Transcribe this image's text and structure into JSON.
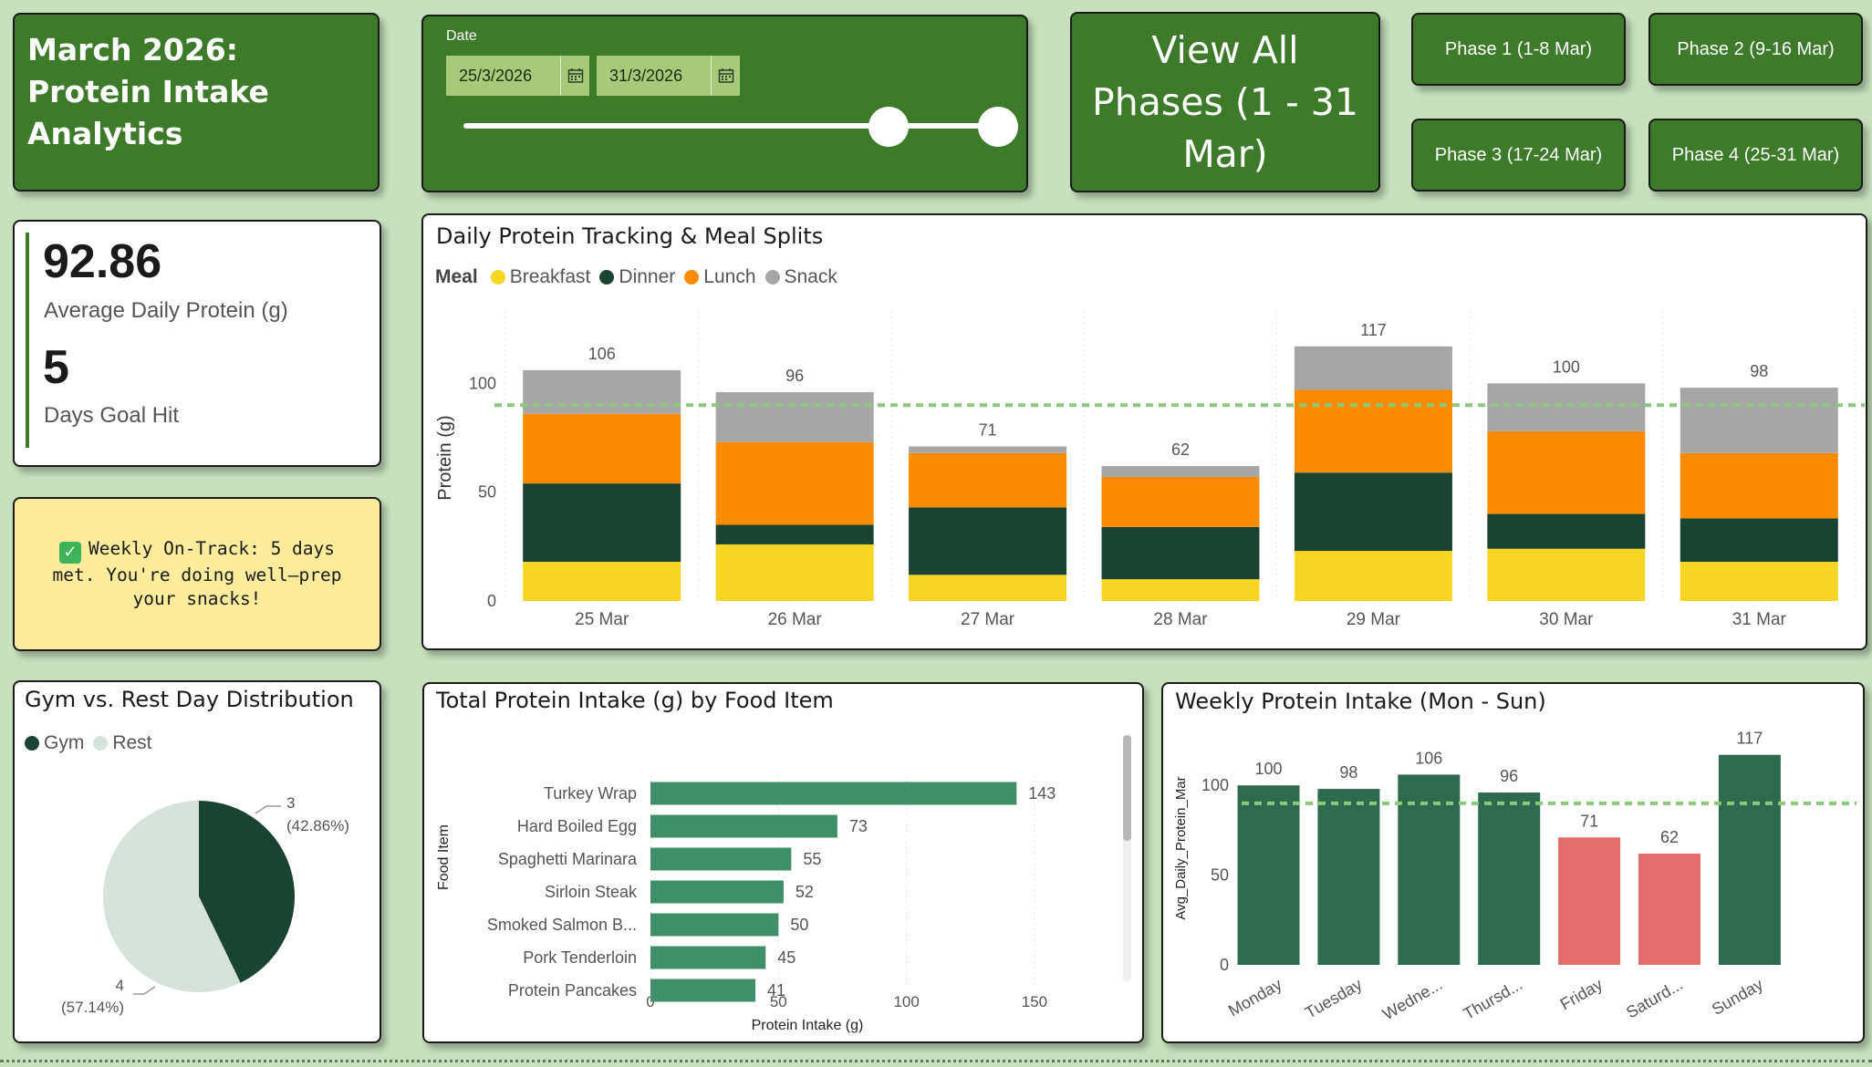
{
  "header": {
    "title": "March 2026: Protein Intake Analytics"
  },
  "date_filter": {
    "label": "Date",
    "start": "25/3/2026",
    "end": "31/3/2026",
    "range_fraction": [
      0.795,
      1.0
    ]
  },
  "buttons": {
    "view_all": "View All Phases (1 - 31 Mar)",
    "phase1": "Phase 1 (1-8 Mar)",
    "phase2": "Phase 2 (9-16 Mar)",
    "phase3": "Phase 3 (17-24 Mar)",
    "phase4": "Phase 4 (25-31 Mar)"
  },
  "kpis": {
    "avg_value": "92.86",
    "avg_label": "Average Daily Protein (g)",
    "goal_value": "5",
    "goal_label": "Days Goal Hit"
  },
  "note": {
    "icon": "check-icon",
    "text": "Weekly On-Track: 5 days met. You're doing well—prep your snacks!"
  },
  "colors": {
    "card_green": "#3d7a2a",
    "breakfast": "#f6d523",
    "dinner": "#1b4332",
    "lunch": "#fb8c00",
    "snack": "#a6a6a6",
    "food_bar": "#3f8f6a",
    "week_met": "#2d6a4f",
    "week_below": "#e36c6c",
    "gym": "#1b4332",
    "rest": "#d6e2dc",
    "goal_line": "#8bc97a"
  },
  "chart_data": [
    {
      "id": "daily",
      "type": "bar",
      "stacked": true,
      "title": "Daily Protein Tracking & Meal Splits",
      "legend_title": "Meal",
      "legend_position": "top-left",
      "categories": [
        "25 Mar",
        "26 Mar",
        "27 Mar",
        "28 Mar",
        "29 Mar",
        "30 Mar",
        "31 Mar"
      ],
      "series": [
        {
          "name": "Breakfast",
          "values": [
            18,
            26,
            12,
            10,
            23,
            24,
            18
          ]
        },
        {
          "name": "Dinner",
          "values": [
            36,
            9,
            31,
            24,
            36,
            16,
            20
          ]
        },
        {
          "name": "Lunch",
          "values": [
            32,
            38,
            25,
            23,
            38,
            38,
            30
          ]
        },
        {
          "name": "Snack",
          "values": [
            20,
            23,
            3,
            5,
            20,
            22,
            30
          ]
        }
      ],
      "totals": [
        106,
        96,
        71,
        62,
        117,
        100,
        98
      ],
      "goal_line": 90,
      "xlabel": "",
      "ylabel": "Protein (g)",
      "yticks": [
        0,
        50,
        100
      ],
      "ylim": [
        0,
        132
      ],
      "grid": true
    },
    {
      "id": "food",
      "type": "bar",
      "orientation": "horizontal",
      "title": "Total Protein Intake (g) by Food Item",
      "categories": [
        "Turkey Wrap",
        "Hard Boiled Egg",
        "Spaghetti Marinara",
        "Sirloin Steak",
        "Smoked Salmon B...",
        "Pork Tenderloin",
        "Protein Pancakes"
      ],
      "values": [
        143,
        73,
        55,
        52,
        50,
        45,
        41
      ],
      "xlabel": "Protein Intake (g)",
      "ylabel": "Food Item",
      "xticks": [
        0,
        50,
        100,
        150
      ],
      "xlim": [
        0,
        160
      ],
      "grid": true
    },
    {
      "id": "weekly",
      "type": "bar",
      "title": "Weekly Protein Intake (Mon - Sun)",
      "categories": [
        "Monday",
        "Tuesday",
        "Wedne...",
        "Thursd...",
        "Friday",
        "Saturd...",
        "Sunday"
      ],
      "values": [
        100,
        98,
        106,
        96,
        71,
        62,
        117
      ],
      "below_goal": [
        false,
        false,
        false,
        false,
        true,
        true,
        false
      ],
      "goal_line": 90,
      "xlabel": "",
      "ylabel": "Avg_Daily_Protein_Mar",
      "yticks": [
        0,
        50,
        100
      ],
      "ylim": [
        0,
        126
      ],
      "grid": false
    },
    {
      "id": "gym_rest",
      "type": "pie",
      "title": "Gym vs. Rest Day Distribution",
      "categories": [
        "Gym",
        "Rest"
      ],
      "values": [
        3,
        4
      ],
      "labels": [
        "3",
        "4"
      ],
      "percents": [
        "(42.86%)",
        "(57.14%)"
      ],
      "legend_position": "top-left"
    }
  ]
}
